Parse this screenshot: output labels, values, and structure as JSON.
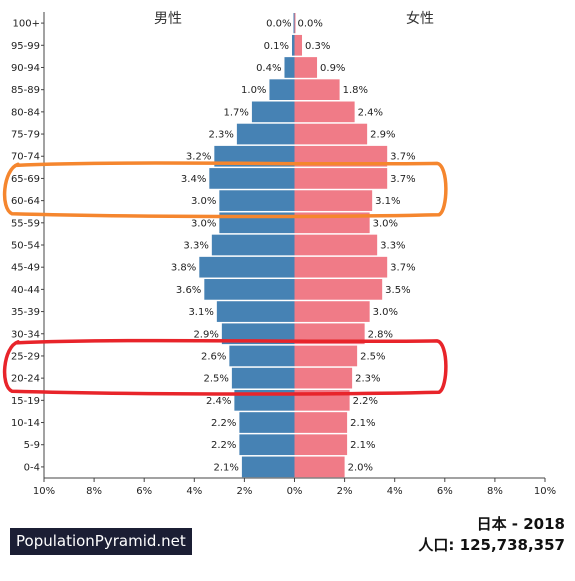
{
  "headers": {
    "male": "男性",
    "female": "女性"
  },
  "caption": {
    "country_year": "日本 - 2018",
    "population_label": "人口:",
    "population_value": "125,738,357"
  },
  "brand": "PopulationPyramid.net",
  "colors": {
    "male": "#4682b4",
    "female": "#f07b87",
    "orange_highlight": "#f5862e",
    "red_highlight": "#e8242a"
  },
  "chart_data": {
    "type": "bar",
    "orientation": "horizontal-pyramid",
    "categories": [
      "100+",
      "95-99",
      "90-94",
      "85-89",
      "80-84",
      "75-79",
      "70-74",
      "65-69",
      "60-64",
      "55-59",
      "50-54",
      "45-49",
      "40-44",
      "35-39",
      "30-34",
      "25-29",
      "20-24",
      "15-19",
      "10-14",
      "5-9",
      "0-4"
    ],
    "series": [
      {
        "name": "男性",
        "values": [
          0.0,
          0.1,
          0.4,
          1.0,
          1.7,
          2.3,
          3.2,
          3.4,
          3.0,
          3.0,
          3.3,
          3.8,
          3.6,
          3.1,
          2.9,
          2.6,
          2.5,
          2.4,
          2.2,
          2.2,
          2.1
        ],
        "labels": [
          "0.0%",
          "0.1%",
          "0.4%",
          "1.0%",
          "1.7%",
          "2.3%",
          "3.2%",
          "3.4%",
          "3.0%",
          "3.0%",
          "3.3%",
          "3.8%",
          "3.6%",
          "3.1%",
          "2.9%",
          "2.6%",
          "2.5%",
          "2.4%",
          "2.2%",
          "2.2%",
          "2.1%"
        ]
      },
      {
        "name": "女性",
        "values": [
          0.0,
          0.3,
          0.9,
          1.8,
          2.4,
          2.9,
          3.7,
          3.7,
          3.1,
          3.0,
          3.3,
          3.7,
          3.5,
          3.0,
          2.8,
          2.5,
          2.3,
          2.2,
          2.1,
          2.1,
          2.0
        ],
        "labels": [
          "0.0%",
          "0.3%",
          "0.9%",
          "1.8%",
          "2.4%",
          "2.9%",
          "3.7%",
          "3.7%",
          "3.1%",
          "3.0%",
          "3.3%",
          "3.7%",
          "3.5%",
          "3.0%",
          "2.8%",
          "2.5%",
          "2.3%",
          "2.2%",
          "2.1%",
          "2.1%",
          "2.0%"
        ]
      }
    ],
    "xticks": [
      -10,
      -8,
      -6,
      -4,
      -2,
      0,
      2,
      4,
      6,
      8,
      10
    ],
    "xtick_labels": [
      "10%",
      "8%",
      "6%",
      "4%",
      "2%",
      "0%",
      "2%",
      "4%",
      "6%",
      "8%",
      "10%"
    ],
    "xlim": [
      -10,
      10
    ],
    "highlights": [
      {
        "color": "orange",
        "categories": [
          "65-69",
          "60-64"
        ]
      },
      {
        "color": "red",
        "categories": [
          "25-29",
          "20-24"
        ]
      }
    ]
  }
}
